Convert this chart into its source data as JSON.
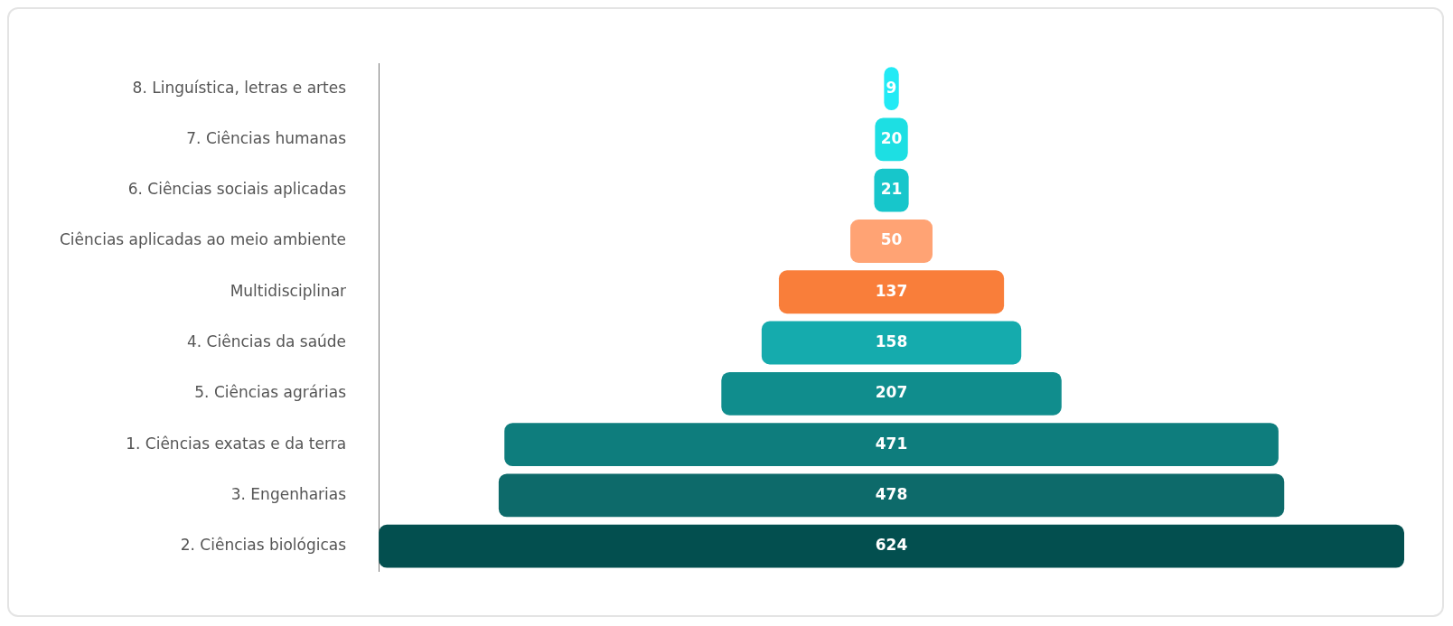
{
  "chart_data": {
    "type": "other",
    "data_labels": true,
    "legend": false,
    "categories": [
      "8. Linguística, letras e artes",
      "7. Ciências humanas",
      "6. Ciências sociais aplicadas",
      "Ciências aplicadas ao meio ambiente",
      "Multidisciplinar",
      "4. Ciências da saúde",
      "5. Ciências agrárias",
      "1. Ciências exatas e da terra",
      "3. Engenharias",
      "2. Ciências biológicas"
    ],
    "values": [
      9,
      20,
      21,
      50,
      137,
      158,
      207,
      471,
      478,
      624
    ],
    "colors": [
      "#22eaf5",
      "#1ddfe3",
      "#17c6cb",
      "#ffa374",
      "#f97e3a",
      "#15abad",
      "#108d8d",
      "#0e7d7d",
      "#0d6a6a",
      "#034f4f"
    ]
  }
}
